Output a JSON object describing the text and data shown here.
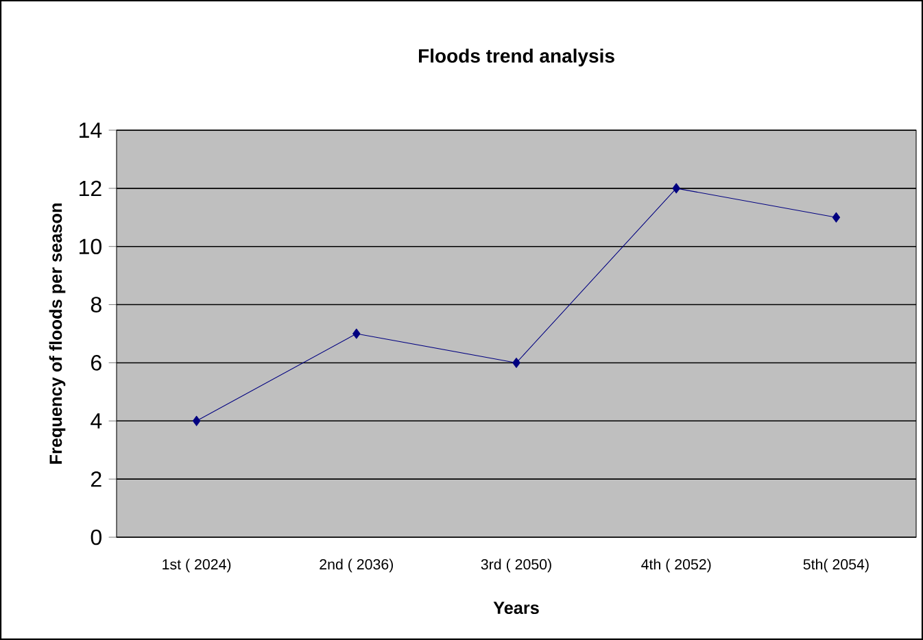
{
  "chart_data": {
    "type": "line",
    "title": "Floods trend analysis",
    "xlabel": "Years",
    "ylabel": "Frequency of floods per season",
    "categories": [
      "1st ( 2024)",
      "2nd ( 2036)",
      "3rd ( 2050)",
      "4th ( 2052)",
      "5th( 2054)"
    ],
    "series": [
      {
        "color": "#000080",
        "values": [
          4,
          7,
          6,
          12,
          11
        ]
      }
    ],
    "ylim": [
      0,
      14
    ],
    "yticks": [
      0,
      2,
      4,
      6,
      8,
      10,
      12,
      14
    ],
    "grid": "y",
    "marker": "diamond",
    "line_style": "solid"
  }
}
